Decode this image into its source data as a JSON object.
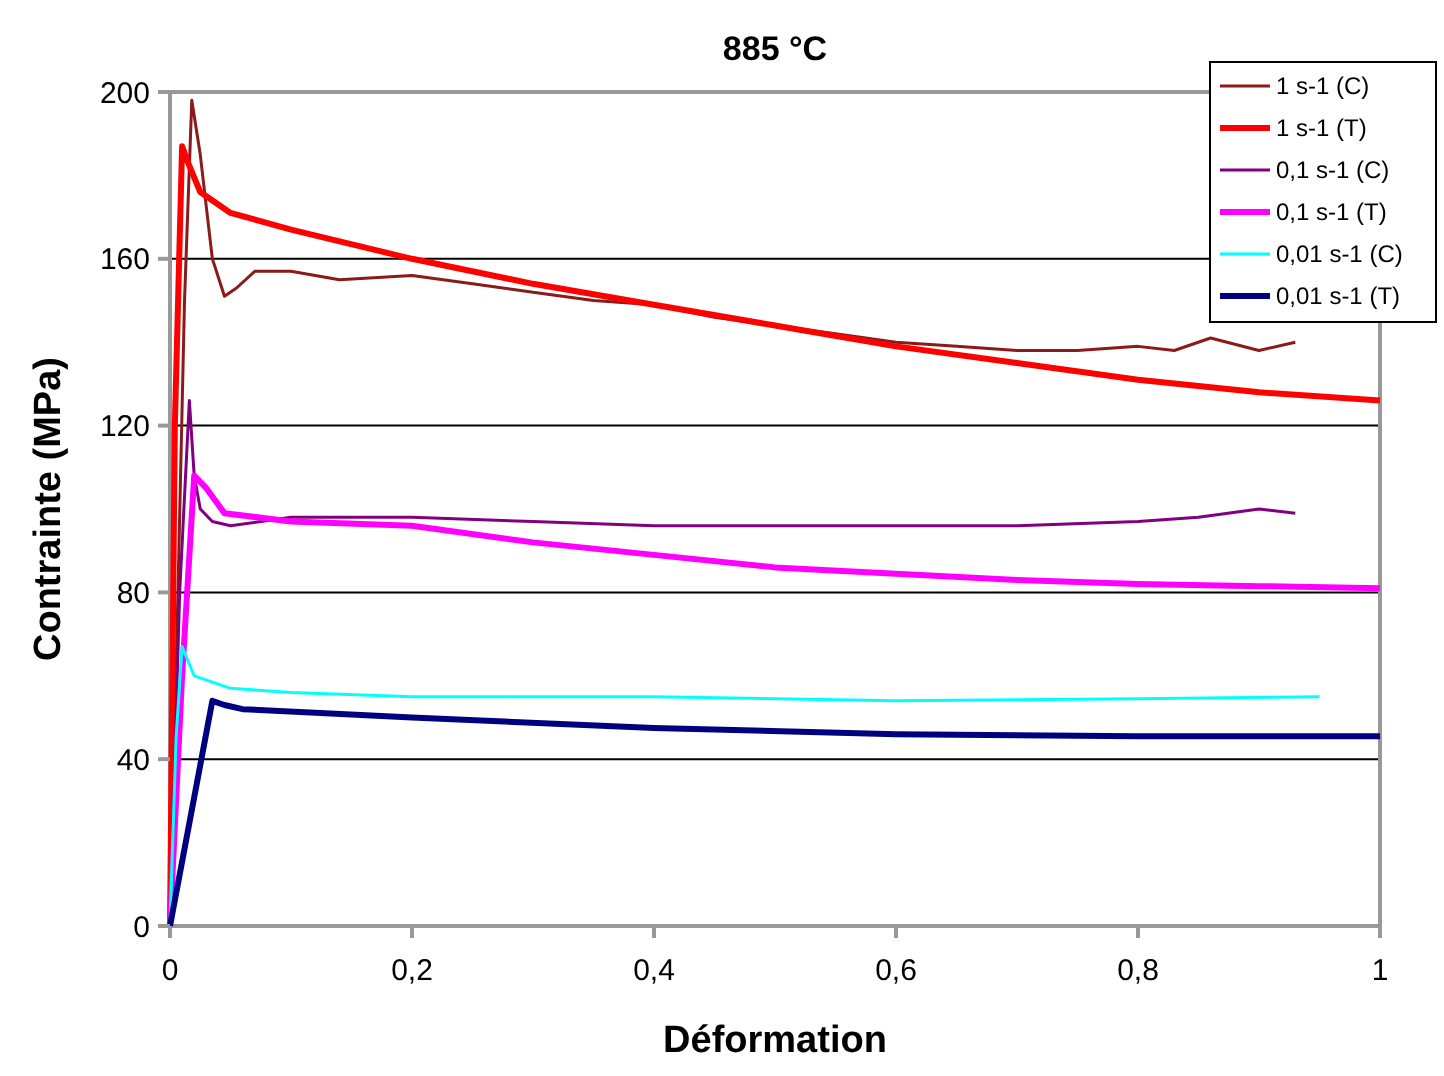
{
  "chart_data": {
    "type": "line",
    "title": "885 °C",
    "xlabel": "Déformation",
    "ylabel": "Contrainte (MPa)",
    "xlim": [
      0,
      1
    ],
    "ylim": [
      0,
      200
    ],
    "xticks": [
      0,
      {
        "value": 0.2,
        "label": "0,2"
      },
      {
        "value": 0.4,
        "label": "0,4"
      },
      {
        "value": 0.6,
        "label": "0,6"
      },
      {
        "value": 0.8,
        "label": "0,8"
      },
      1
    ],
    "yticks": [
      0,
      40,
      80,
      120,
      160,
      200
    ],
    "grid": "y",
    "legend": "top right",
    "marker": "none",
    "line_style": "solid",
    "series": [
      {
        "name": "1 s-1 (C)",
        "color": "#8b1a1a",
        "x": [
          0,
          0.005,
          0.012,
          0.018,
          0.025,
          0.035,
          0.045,
          0.055,
          0.07,
          0.1,
          0.14,
          0.2,
          0.25,
          0.3,
          0.35,
          0.4,
          0.45,
          0.5,
          0.55,
          0.6,
          0.65,
          0.7,
          0.75,
          0.8,
          0.83,
          0.86,
          0.9,
          0.93
        ],
        "values": [
          0,
          60,
          150,
          198,
          185,
          160,
          151,
          153,
          157,
          157,
          155,
          156,
          154,
          152,
          150,
          149,
          146,
          144,
          142,
          140,
          139,
          138,
          138,
          139,
          138,
          141,
          138,
          140
        ]
      },
      {
        "name": "1 s-1 (T)",
        "color": "#ff0000",
        "x": [
          0,
          0.004,
          0.01,
          0.015,
          0.025,
          0.05,
          0.1,
          0.2,
          0.3,
          0.4,
          0.5,
          0.6,
          0.7,
          0.8,
          0.9,
          1
        ],
        "values": [
          0,
          120,
          187,
          183,
          176,
          171,
          167,
          160,
          154,
          149,
          144,
          139,
          135,
          131,
          128,
          126
        ]
      },
      {
        "name": "0,1 s-1 (C)",
        "color": "#800080",
        "x": [
          0,
          0.008,
          0.016,
          0.02,
          0.025,
          0.035,
          0.05,
          0.1,
          0.2,
          0.3,
          0.4,
          0.5,
          0.6,
          0.7,
          0.8,
          0.85,
          0.9,
          0.93
        ],
        "values": [
          0,
          80,
          126,
          108,
          100,
          97,
          96,
          98,
          98,
          97,
          96,
          96,
          96,
          96,
          97,
          98,
          100,
          99
        ]
      },
      {
        "name": "0,1 s-1 (T)",
        "color": "#ff00ff",
        "x": [
          0,
          0.01,
          0.02,
          0.03,
          0.045,
          0.1,
          0.2,
          0.3,
          0.4,
          0.5,
          0.6,
          0.7,
          0.8,
          0.9,
          1
        ],
        "values": [
          0,
          60,
          108,
          105,
          99,
          97,
          96,
          92,
          89,
          86,
          84.5,
          83,
          82,
          81.5,
          81
        ]
      },
      {
        "name": "0,01 s-1 (C)",
        "color": "#00ffff",
        "x": [
          0,
          0.005,
          0.01,
          0.02,
          0.05,
          0.1,
          0.2,
          0.4,
          0.6,
          0.8,
          0.95
        ],
        "values": [
          0,
          45,
          67,
          60,
          57,
          56,
          55,
          55,
          54,
          54.5,
          55
        ]
      },
      {
        "name": "0,01 s-1 (T)",
        "color": "#000080",
        "x": [
          0,
          0.035,
          0.045,
          0.06,
          0.2,
          0.4,
          0.6,
          0.8,
          1
        ],
        "values": [
          0,
          54,
          53,
          52,
          50,
          47.5,
          46,
          45.5,
          45.5
        ]
      }
    ]
  }
}
